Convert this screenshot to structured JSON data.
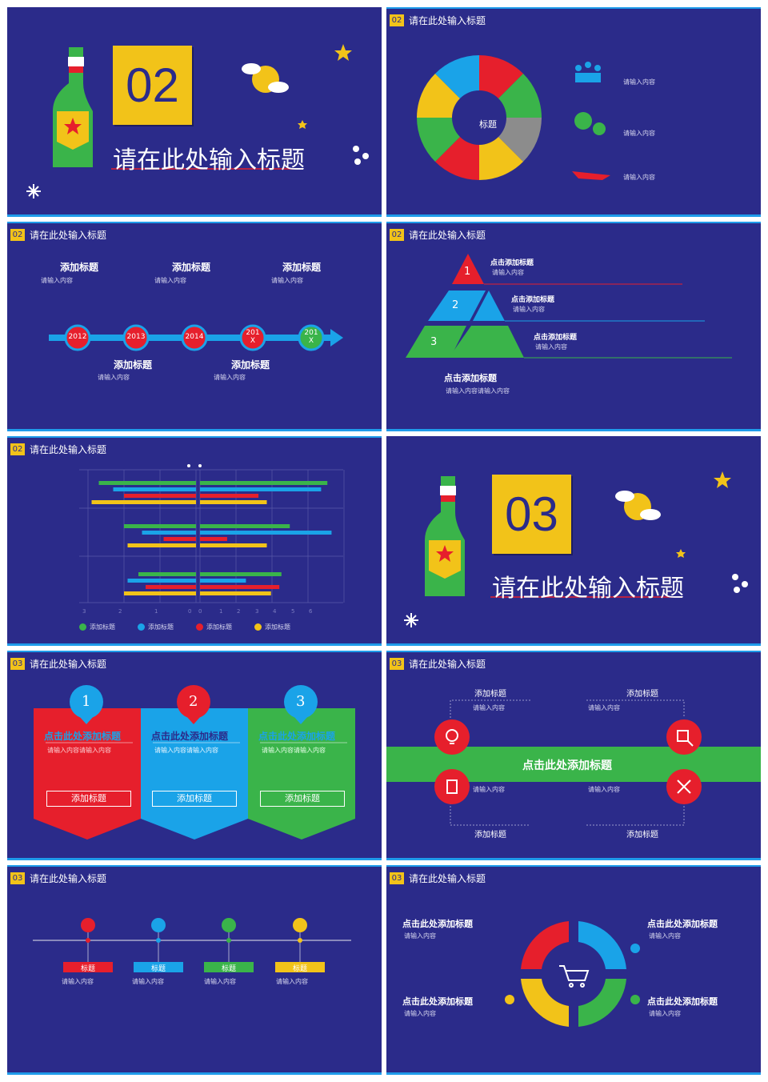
{
  "colors": {
    "bg": "#2b2b8a",
    "accent": "#f2c319",
    "red": "#e61f2c",
    "blue": "#1aa3e8",
    "green": "#3ab44a",
    "yellow": "#f2c319"
  },
  "s1": {
    "number": "02",
    "title": "请在此处输入标题"
  },
  "s2": {
    "header_num": "02",
    "header_title": "请在此处输入标题",
    "center": "标题",
    "items": [
      "请输入内容",
      "请输入内容",
      "请输入内容"
    ]
  },
  "s3": {
    "header_num": "02",
    "header_title": "请在此处输入标题",
    "top": [
      {
        "title": "添加标题",
        "text": "请输入内容"
      },
      {
        "title": "添加标题",
        "text": "请输入内容"
      },
      {
        "title": "添加标题",
        "text": "请输入内容"
      }
    ],
    "bottom": [
      {
        "title": "添加标题",
        "text": "请输入内容"
      },
      {
        "title": "添加标题",
        "text": "请输入内容"
      }
    ],
    "years": [
      "2012",
      "2013",
      "2014",
      "201X",
      "201X"
    ]
  },
  "s4": {
    "header_num": "02",
    "header_title": "请在此处输入标题",
    "levels": [
      {
        "num": "1",
        "title": "点击添加标题",
        "text": "请输入内容"
      },
      {
        "num": "2",
        "title": "点击添加标题",
        "text": "请输入内容"
      },
      {
        "num": "3",
        "title": "点击添加标题",
        "text": "请输入内容"
      }
    ],
    "bottom_title": "点击添加标题",
    "bottom_text": "请输入内容请输入内容"
  },
  "s5": {
    "header_num": "02",
    "header_title": "请在此处输入标题",
    "chart_data": {
      "type": "bar",
      "orientation": "horizontal",
      "diverging": true,
      "ticks": [
        "3",
        "2",
        "1",
        "0",
        "0",
        "1",
        "2",
        "3",
        "4",
        "5",
        "6"
      ],
      "legend": [
        "添加标题",
        "添加标题",
        "添加标题",
        "添加标题"
      ],
      "groups": [
        {
          "left": [
            2.7,
            2.3,
            2.0,
            2.9
          ],
          "right": [
            6.1,
            5.8,
            2.8,
            3.2
          ]
        },
        {
          "left": [
            2.0,
            1.5,
            0.9,
            1.9
          ],
          "right": [
            4.3,
            6.3,
            1.3,
            3.2
          ]
        },
        {
          "left": [
            1.6,
            1.9,
            1.4,
            2.0
          ],
          "right": [
            3.9,
            2.2,
            3.8,
            3.4
          ]
        }
      ]
    }
  },
  "s6": {
    "number": "03",
    "title": "请在此处输入标题"
  },
  "s7": {
    "header_num": "03",
    "header_title": "请在此处输入标题",
    "cards": [
      {
        "num": "1",
        "title": "点击此处添加标题",
        "text": "请输入内容请输入内容",
        "button": "添加标题"
      },
      {
        "num": "2",
        "title": "点击此处添加标题",
        "text": "请输入内容请输入内容",
        "button": "添加标题"
      },
      {
        "num": "3",
        "title": "点击此处添加标题",
        "text": "请输入内容请输入内容",
        "button": "添加标题"
      }
    ]
  },
  "s8": {
    "header_num": "03",
    "header_title": "请在此处输入标题",
    "banner": "点击此处添加标题",
    "items": [
      {
        "title": "添加标题",
        "text": "请输入内容"
      },
      {
        "title": "添加标题",
        "text": "请输入内容"
      },
      {
        "title": "添加标题",
        "text": "请输入内容"
      },
      {
        "title": "添加标题",
        "text": "请输入内容"
      }
    ]
  },
  "s9": {
    "header_num": "03",
    "header_title": "请在此处输入标题",
    "items": [
      {
        "label": "标题",
        "text": "请输入内容"
      },
      {
        "label": "标题",
        "text": "请输入内容"
      },
      {
        "label": "标题",
        "text": "请输入内容"
      },
      {
        "label": "标题",
        "text": "请输入内容"
      }
    ]
  },
  "s10": {
    "header_num": "03",
    "header_title": "请在此处输入标题",
    "items": [
      {
        "title": "点击此处添加标题",
        "text": "请输入内容"
      },
      {
        "title": "点击此处添加标题",
        "text": "请输入内容"
      },
      {
        "title": "点击此处添加标题",
        "text": "请输入内容"
      },
      {
        "title": "点击此处添加标题",
        "text": "请输入内容"
      }
    ]
  }
}
